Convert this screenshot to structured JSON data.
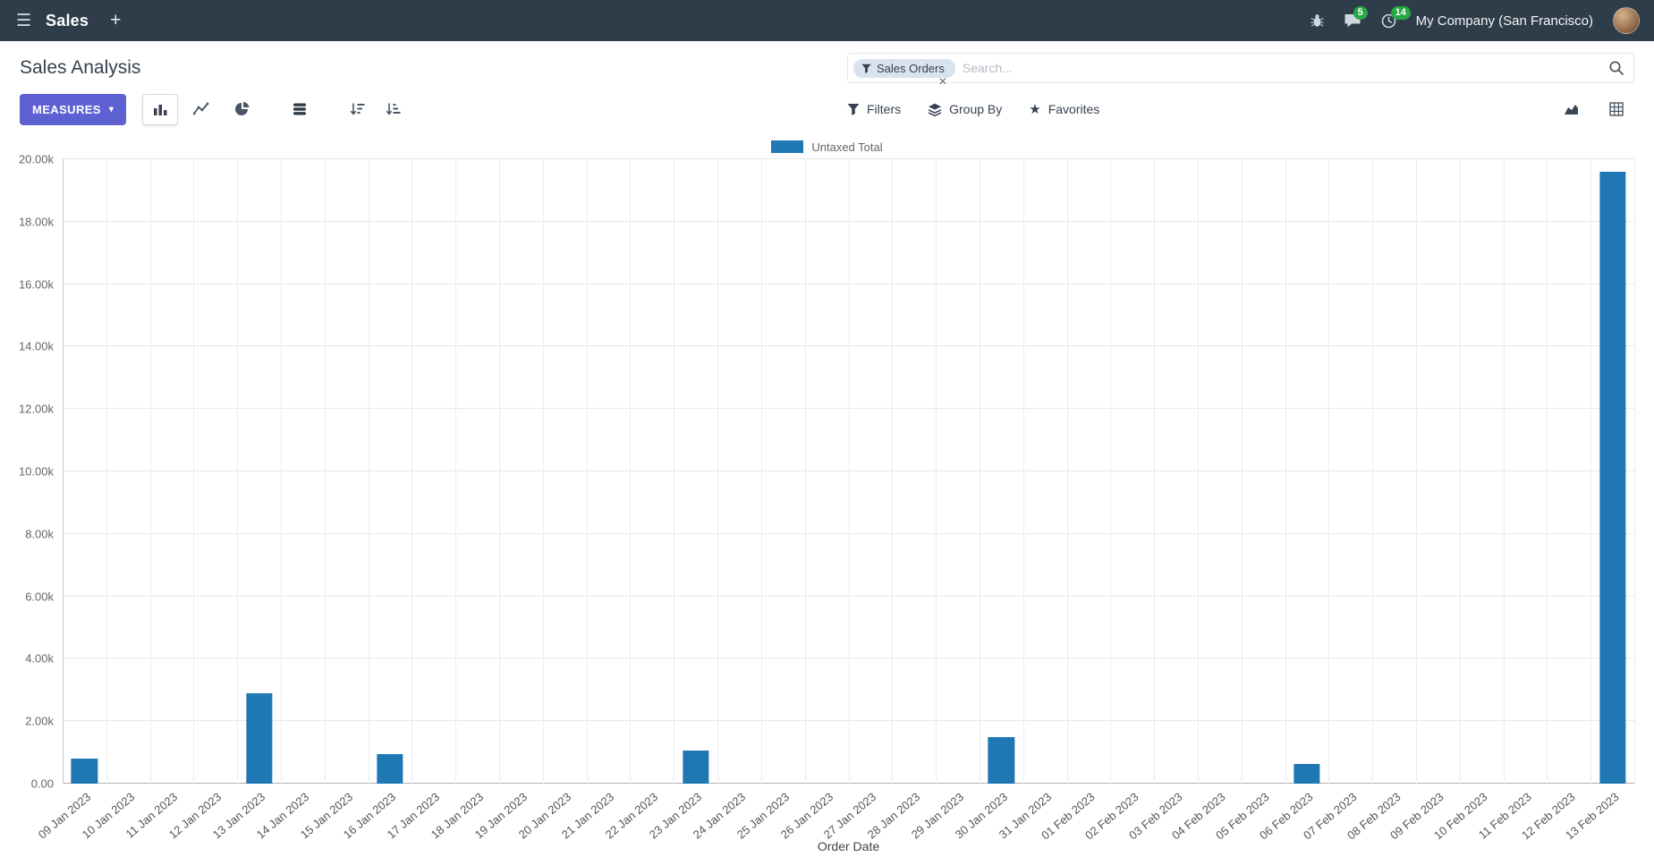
{
  "navbar": {
    "app_name": "Sales",
    "new_tab_label": "+",
    "messages_count": "5",
    "activities_count": "14",
    "company": "My Company (San Francisco)"
  },
  "control_panel": {
    "title": "Sales Analysis",
    "measures_label": "MEASURES",
    "search": {
      "facet_label": "Sales Orders",
      "placeholder": "Search..."
    },
    "filters_label": "Filters",
    "group_by_label": "Group By",
    "favorites_label": "Favorites"
  },
  "icons": {
    "hamburger": "☰",
    "caret_down": "▾",
    "close": "✕",
    "star": "★"
  },
  "colors": {
    "navbar_bg": "#2e3d49",
    "primary_button": "#5d61d2",
    "badge_green": "#28a745",
    "facet_bg": "#d9e3ee",
    "bar_color": "#1f77b4"
  },
  "chart_data": {
    "type": "bar",
    "title": "",
    "legend": [
      "Untaxed Total"
    ],
    "series_color": "#1f77b4",
    "xlabel": "Order Date",
    "ylabel": "",
    "ylim": [
      0,
      20000
    ],
    "grid": true,
    "legend_position": "top-center",
    "y_ticks": [
      "0.00",
      "2.00k",
      "4.00k",
      "6.00k",
      "8.00k",
      "10.00k",
      "12.00k",
      "14.00k",
      "16.00k",
      "18.00k",
      "20.00k"
    ],
    "categories": [
      "09 Jan 2023",
      "10 Jan 2023",
      "11 Jan 2023",
      "12 Jan 2023",
      "13 Jan 2023",
      "14 Jan 2023",
      "15 Jan 2023",
      "16 Jan 2023",
      "17 Jan 2023",
      "18 Jan 2023",
      "19 Jan 2023",
      "20 Jan 2023",
      "21 Jan 2023",
      "22 Jan 2023",
      "23 Jan 2023",
      "24 Jan 2023",
      "25 Jan 2023",
      "26 Jan 2023",
      "27 Jan 2023",
      "28 Jan 2023",
      "29 Jan 2023",
      "30 Jan 2023",
      "31 Jan 2023",
      "01 Feb 2023",
      "02 Feb 2023",
      "03 Feb 2023",
      "04 Feb 2023",
      "05 Feb 2023",
      "06 Feb 2023",
      "07 Feb 2023",
      "08 Feb 2023",
      "09 Feb 2023",
      "10 Feb 2023",
      "11 Feb 2023",
      "12 Feb 2023",
      "13 Feb 2023"
    ],
    "values": [
      800,
      0,
      0,
      0,
      2900,
      0,
      0,
      950,
      0,
      0,
      0,
      0,
      0,
      0,
      1050,
      0,
      0,
      0,
      0,
      0,
      0,
      1500,
      0,
      0,
      0,
      0,
      0,
      0,
      620,
      0,
      0,
      0,
      0,
      0,
      0,
      19600
    ]
  }
}
